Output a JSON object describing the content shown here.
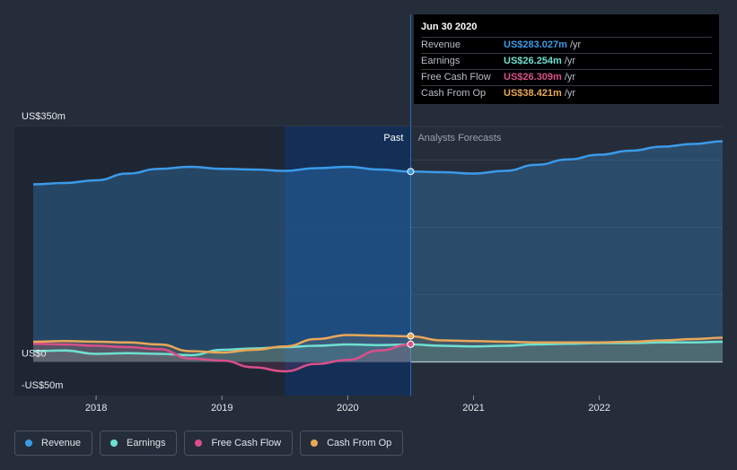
{
  "tooltip": {
    "date": "Jun 30 2020",
    "rows": [
      {
        "label": "Revenue",
        "value": "US$283.027m",
        "unit": "/yr",
        "color": "#3b9ae8"
      },
      {
        "label": "Earnings",
        "value": "US$26.254m",
        "unit": "/yr",
        "color": "#6fe0d0"
      },
      {
        "label": "Free Cash Flow",
        "value": "US$26.309m",
        "unit": "/yr",
        "color": "#d94f8a"
      },
      {
        "label": "Cash From Op",
        "value": "US$38.421m",
        "unit": "/yr",
        "color": "#e8a858"
      }
    ]
  },
  "chart_data": {
    "type": "line",
    "title": "",
    "xlabel": "",
    "ylabel": "",
    "y_axis_labels": [
      "US$350m",
      "US$0",
      "-US$50m"
    ],
    "x_ticks": [
      "2018",
      "2019",
      "2020",
      "2021",
      "2022"
    ],
    "xlim": [
      2017.35,
      2022.98
    ],
    "ylim": [
      -50,
      350
    ],
    "regions": {
      "past_label": "Past",
      "forecast_label": "Analysts Forecasts",
      "split_x": 2020.5
    },
    "series": [
      {
        "name": "Revenue",
        "color": "#3b9ae8",
        "points": [
          [
            2017.5,
            264
          ],
          [
            2017.75,
            266
          ],
          [
            2018.0,
            270
          ],
          [
            2018.25,
            280
          ],
          [
            2018.5,
            287
          ],
          [
            2018.75,
            290
          ],
          [
            2019.0,
            287
          ],
          [
            2019.25,
            286
          ],
          [
            2019.5,
            284
          ],
          [
            2019.75,
            288
          ],
          [
            2020.0,
            290
          ],
          [
            2020.25,
            286
          ],
          [
            2020.5,
            283
          ],
          [
            2020.75,
            282
          ],
          [
            2021.0,
            280
          ],
          [
            2021.25,
            284
          ],
          [
            2021.5,
            293
          ],
          [
            2021.75,
            301
          ],
          [
            2022.0,
            308
          ],
          [
            2022.25,
            314
          ],
          [
            2022.5,
            320
          ],
          [
            2022.75,
            324
          ],
          [
            2022.98,
            328
          ]
        ]
      },
      {
        "name": "Earnings",
        "color": "#6fe0d0",
        "points": [
          [
            2017.5,
            16
          ],
          [
            2017.75,
            17
          ],
          [
            2018.0,
            12
          ],
          [
            2018.25,
            13
          ],
          [
            2018.5,
            12
          ],
          [
            2018.75,
            10
          ],
          [
            2019.0,
            18
          ],
          [
            2019.25,
            20
          ],
          [
            2019.5,
            22
          ],
          [
            2019.75,
            24
          ],
          [
            2020.0,
            26
          ],
          [
            2020.25,
            25
          ],
          [
            2020.5,
            26
          ],
          [
            2020.75,
            24
          ],
          [
            2021.0,
            23
          ],
          [
            2021.25,
            24
          ],
          [
            2021.5,
            26
          ],
          [
            2021.75,
            27
          ],
          [
            2022.0,
            28
          ],
          [
            2022.25,
            28
          ],
          [
            2022.5,
            29
          ],
          [
            2022.75,
            29
          ],
          [
            2022.98,
            30
          ]
        ]
      },
      {
        "name": "Free Cash Flow",
        "color": "#d94f8a",
        "points": [
          [
            2017.5,
            27
          ],
          [
            2017.75,
            26
          ],
          [
            2018.0,
            24
          ],
          [
            2018.25,
            22
          ],
          [
            2018.5,
            19
          ],
          [
            2018.75,
            5
          ],
          [
            2019.0,
            2
          ],
          [
            2019.25,
            -8
          ],
          [
            2019.5,
            -14
          ],
          [
            2019.75,
            -3
          ],
          [
            2020.0,
            3
          ],
          [
            2020.25,
            17
          ],
          [
            2020.5,
            26
          ]
        ]
      },
      {
        "name": "Cash From Op",
        "color": "#e8a858",
        "points": [
          [
            2017.5,
            30
          ],
          [
            2017.75,
            31
          ],
          [
            2018.0,
            30
          ],
          [
            2018.25,
            29
          ],
          [
            2018.5,
            26
          ],
          [
            2018.75,
            16
          ],
          [
            2019.0,
            14
          ],
          [
            2019.25,
            18
          ],
          [
            2019.5,
            23
          ],
          [
            2019.75,
            34
          ],
          [
            2020.0,
            40
          ],
          [
            2020.25,
            39
          ],
          [
            2020.5,
            38
          ],
          [
            2020.75,
            32
          ],
          [
            2021.0,
            31
          ],
          [
            2021.25,
            30
          ],
          [
            2021.5,
            29
          ],
          [
            2021.75,
            29
          ],
          [
            2022.0,
            29
          ],
          [
            2022.25,
            30
          ],
          [
            2022.5,
            32
          ],
          [
            2022.75,
            34
          ],
          [
            2022.98,
            36
          ]
        ]
      }
    ],
    "highlight": {
      "x": 2020.5,
      "values": {
        "Revenue": 283.027,
        "Earnings": 26.254,
        "Free Cash Flow": 26.309,
        "Cash From Op": 38.421
      }
    },
    "grid": true,
    "legend_position": "bottom-left"
  },
  "legend": [
    {
      "label": "Revenue",
      "color": "#3b9ae8"
    },
    {
      "label": "Earnings",
      "color": "#6fe0d0"
    },
    {
      "label": "Free Cash Flow",
      "color": "#d94f8a"
    },
    {
      "label": "Cash From Op",
      "color": "#e8a858"
    }
  ]
}
